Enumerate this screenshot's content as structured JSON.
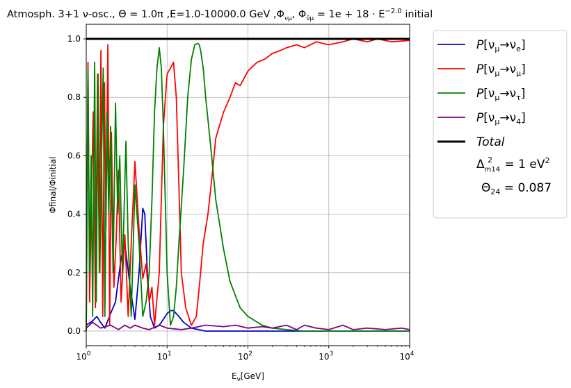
{
  "chart_data": {
    "type": "line",
    "title": "Atmosph. 3+1 ν-osc., Θ = 1.0π ,E=1.0-10000.0 GeV ,Φ",
    "title_sub": "νμ",
    "title_mid": ", Φ",
    "title_sub2": "ν̄μ",
    "title_end": " = 1e + 18 · E",
    "title_sup": "−2.0",
    "title_tail": " initial",
    "xlabel_main": "E",
    "xlabel_sub": "ν",
    "xlabel_unit": "[GeV]",
    "ylabel": "Φfinal/Φinitial",
    "xscale": "log",
    "xlim": [
      1,
      10000
    ],
    "ylim": [
      -0.05,
      1.05
    ],
    "x_ticks": [
      {
        "value": 1,
        "base": "10",
        "exp": "0"
      },
      {
        "value": 10,
        "base": "10",
        "exp": "1"
      },
      {
        "value": 100,
        "base": "10",
        "exp": "2"
      },
      {
        "value": 1000,
        "base": "10",
        "exp": "3"
      },
      {
        "value": 10000,
        "base": "10",
        "exp": "4"
      }
    ],
    "y_ticks": [
      {
        "value": 0.0,
        "label": "0.0"
      },
      {
        "value": 0.2,
        "label": "0.2"
      },
      {
        "value": 0.4,
        "label": "0.4"
      },
      {
        "value": 0.6,
        "label": "0.6"
      },
      {
        "value": 0.8,
        "label": "0.8"
      },
      {
        "value": 1.0,
        "label": "1.0"
      }
    ],
    "grid": true,
    "legend_position": "outside right",
    "legend": [
      {
        "label": "P[νμ→νe]",
        "color": "#0000cc"
      },
      {
        "label": "P[νμ→νμ]",
        "color": "#ff0000"
      },
      {
        "label": "P[νμ→ντ]",
        "color": "#008000"
      },
      {
        "label": "P[νμ→ν4]",
        "color": "#800080"
      },
      {
        "label": "Total",
        "color": "#000000"
      }
    ],
    "annotation": [
      "Δ²m14 = 1 eV²",
      "Θ24 = 0.087"
    ],
    "series": [
      {
        "name": "P[νμ→νe]",
        "color": "#0000cc",
        "x": [
          1,
          1.2,
          1.35,
          1.5,
          1.7,
          2,
          2.3,
          2.7,
          3,
          3.5,
          4,
          4.5,
          5,
          5.3,
          5.7,
          6.2,
          7,
          8,
          9,
          10,
          11,
          12,
          14,
          16,
          20,
          30,
          100,
          10000
        ],
        "y": [
          0.02,
          0.035,
          0.05,
          0.03,
          0.01,
          0.06,
          0.1,
          0.25,
          0.3,
          0.15,
          0.04,
          0.2,
          0.42,
          0.4,
          0.2,
          0.05,
          0.01,
          0.02,
          0.04,
          0.06,
          0.07,
          0.07,
          0.05,
          0.03,
          0.01,
          0.0,
          0.0,
          0.0
        ]
      },
      {
        "name": "P[νμ→νμ]",
        "color": "#ff0000",
        "x": [
          1,
          1.05,
          1.1,
          1.15,
          1.22,
          1.3,
          1.38,
          1.45,
          1.52,
          1.6,
          1.68,
          1.75,
          1.85,
          1.95,
          2.05,
          2.2,
          2.35,
          2.5,
          2.7,
          3,
          3.3,
          3.6,
          4,
          4.5,
          5,
          5.5,
          6,
          6.5,
          7,
          8,
          9,
          10,
          11,
          12,
          13,
          14,
          15,
          17,
          20,
          23,
          25,
          28,
          32,
          36,
          40,
          50,
          60,
          70,
          80,
          100,
          130,
          160,
          200,
          250,
          300,
          400,
          500,
          700,
          1000,
          1500,
          2000,
          3000,
          4000,
          6000,
          10000
        ],
        "y": [
          0.0,
          0.92,
          0.1,
          0.4,
          0.75,
          0.08,
          0.88,
          0.2,
          0.96,
          0.05,
          0.85,
          0.35,
          0.98,
          0.02,
          0.68,
          0.15,
          0.32,
          0.55,
          0.1,
          0.33,
          0.05,
          0.3,
          0.58,
          0.35,
          0.18,
          0.23,
          0.1,
          0.15,
          0.02,
          0.2,
          0.7,
          0.88,
          0.9,
          0.92,
          0.8,
          0.5,
          0.2,
          0.08,
          0.02,
          0.05,
          0.15,
          0.3,
          0.4,
          0.53,
          0.66,
          0.75,
          0.8,
          0.85,
          0.84,
          0.89,
          0.92,
          0.93,
          0.95,
          0.96,
          0.97,
          0.98,
          0.97,
          0.99,
          0.98,
          0.99,
          1.0,
          0.99,
          1.0,
          0.99,
          0.995
        ]
      },
      {
        "name": "P[νμ→ντ]",
        "color": "#008000",
        "x": [
          1,
          1.05,
          1.1,
          1.15,
          1.2,
          1.27,
          1.33,
          1.4,
          1.47,
          1.55,
          1.62,
          1.7,
          1.8,
          1.9,
          2.0,
          2.15,
          2.3,
          2.45,
          2.6,
          2.8,
          3.1,
          3.3,
          3.6,
          4.0,
          4.5,
          5.0,
          5.5,
          6.0,
          6.5,
          7.0,
          7.5,
          8.0,
          8.5,
          9.0,
          10,
          11,
          12,
          13,
          14,
          16,
          18,
          20,
          22,
          24,
          25,
          26,
          28,
          30,
          35,
          40,
          50,
          60,
          80,
          100,
          150,
          200,
          300,
          500,
          1000,
          10000
        ],
        "y": [
          0.0,
          0.9,
          0.2,
          0.6,
          0.05,
          0.92,
          0.1,
          0.88,
          0.2,
          0.6,
          0.9,
          0.05,
          0.75,
          0.4,
          0.7,
          0.2,
          0.78,
          0.4,
          0.6,
          0.2,
          0.65,
          0.3,
          0.05,
          0.5,
          0.3,
          0.05,
          0.1,
          0.2,
          0.45,
          0.75,
          0.9,
          0.97,
          0.9,
          0.7,
          0.2,
          0.02,
          0.05,
          0.15,
          0.3,
          0.55,
          0.8,
          0.93,
          0.98,
          0.985,
          0.98,
          0.96,
          0.9,
          0.8,
          0.62,
          0.45,
          0.28,
          0.17,
          0.08,
          0.05,
          0.02,
          0.01,
          0.005,
          0.0,
          0.0,
          0.0
        ]
      },
      {
        "name": "P[νμ→ν4]",
        "color": "#800080",
        "x": [
          1,
          1.2,
          1.5,
          2,
          2.5,
          3,
          3.5,
          4,
          5,
          6,
          8,
          10,
          15,
          20,
          30,
          50,
          70,
          100,
          150,
          200,
          300,
          400,
          500,
          700,
          1000,
          1500,
          2000,
          3000,
          5000,
          8000,
          10000
        ],
        "y": [
          0.01,
          0.03,
          0.01,
          0.02,
          0.005,
          0.02,
          0.01,
          0.02,
          0.01,
          0.005,
          0.02,
          0.01,
          0.005,
          0.01,
          0.02,
          0.015,
          0.02,
          0.01,
          0.015,
          0.01,
          0.02,
          0.005,
          0.02,
          0.01,
          0.005,
          0.02,
          0.005,
          0.01,
          0.005,
          0.01,
          0.005
        ]
      },
      {
        "name": "Total",
        "color": "#000000",
        "x": [
          1,
          10000
        ],
        "y": [
          1.0,
          1.0
        ]
      }
    ]
  }
}
